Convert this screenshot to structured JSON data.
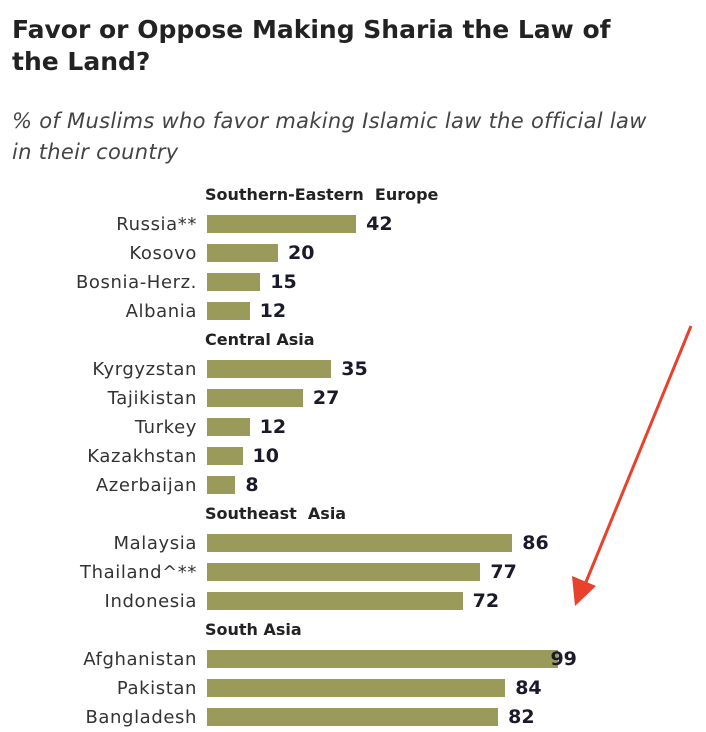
{
  "chart_data": {
    "type": "bar",
    "orientation": "horizontal",
    "title": "Favor or Oppose Making Sharia the Law of the Land?",
    "subtitle": "% of Muslims who favor making Islamic law the official law in their country",
    "xlim": [
      0,
      100
    ],
    "groups": [
      {
        "name": "Southern-Eastern  Europe",
        "categories": [
          "Russia**",
          "Kosovo",
          "Bosnia-Herz.",
          "Albania"
        ],
        "values": [
          42,
          20,
          15,
          12
        ]
      },
      {
        "name": "Central Asia",
        "categories": [
          "Kyrgyzstan",
          "Tajikistan",
          "Turkey",
          "Kazakhstan",
          "Azerbaijan"
        ],
        "values": [
          35,
          27,
          12,
          10,
          8
        ]
      },
      {
        "name": "Southeast  Asia",
        "categories": [
          "Malaysia",
          "Thailand^**",
          "Indonesia"
        ],
        "values": [
          86,
          77,
          72
        ]
      },
      {
        "name": "South Asia",
        "categories": [
          "Afghanistan",
          "Pakistan",
          "Bangladesh"
        ],
        "values": [
          99,
          84,
          82
        ]
      }
    ],
    "bar_color": "#9a9a5a",
    "annotation": {
      "type": "arrow",
      "target": "Afghanistan",
      "color": "#e8412c"
    }
  }
}
